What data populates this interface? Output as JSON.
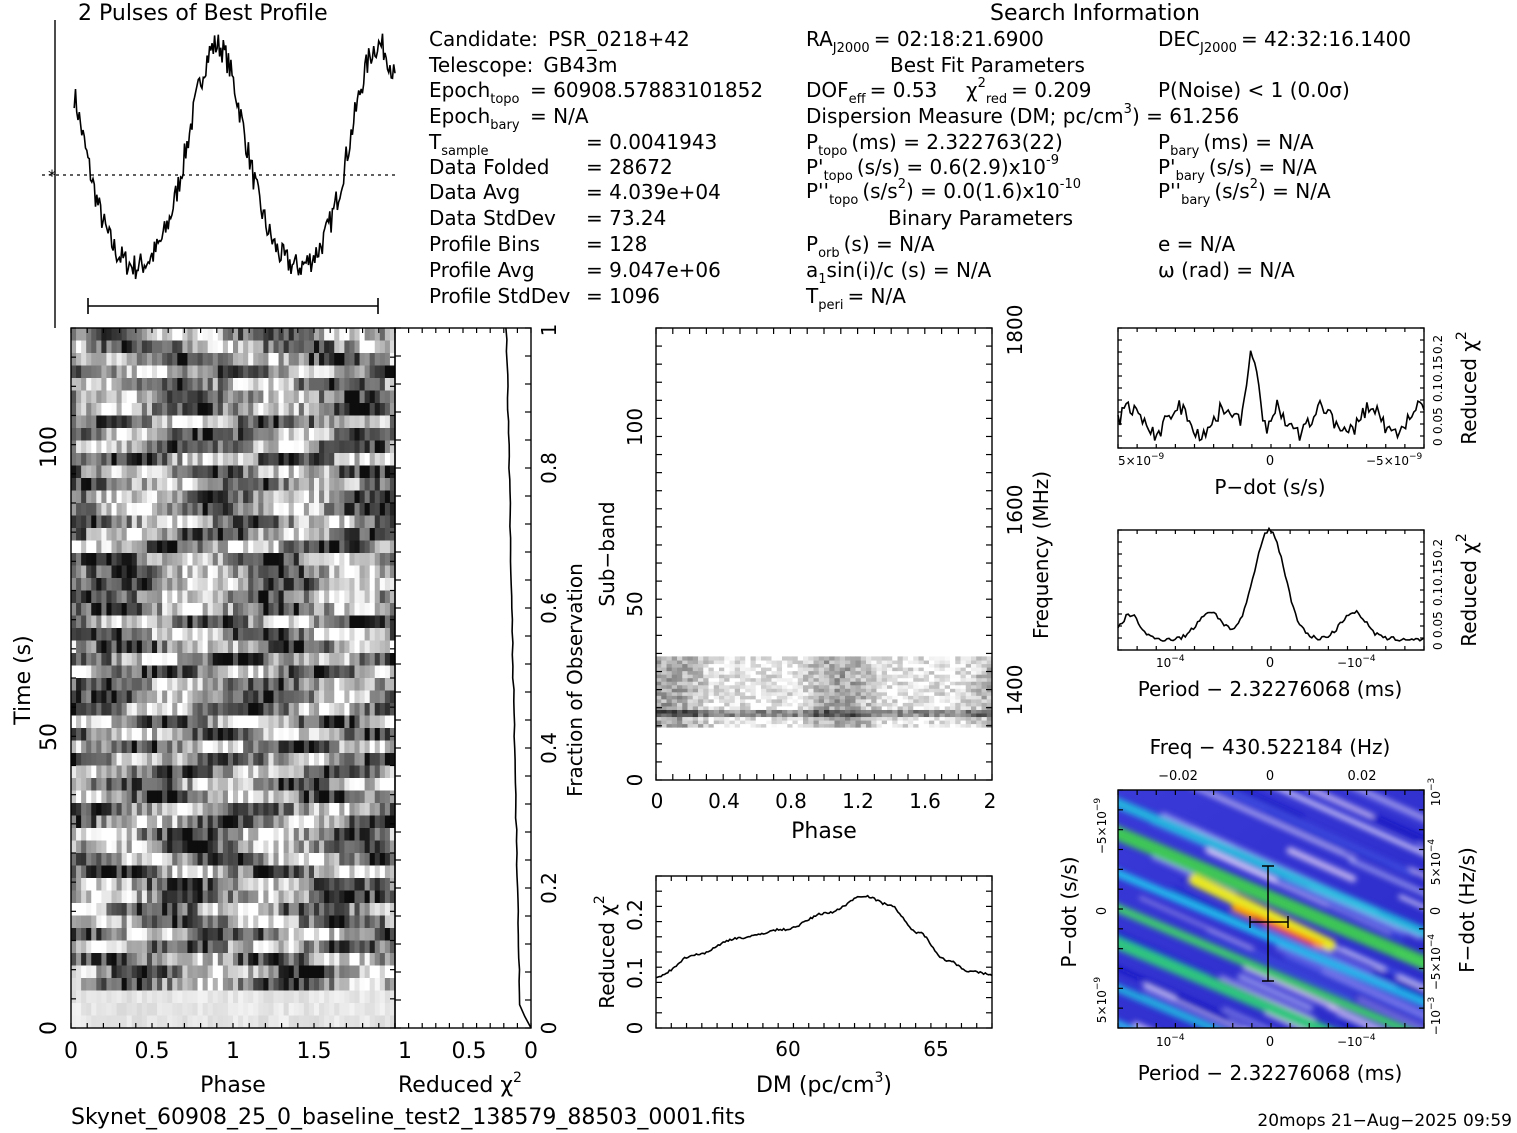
{
  "profile_title": "2 Pulses of Best Profile",
  "search_info_title": "Search Information",
  "info_left": [
    {
      "label": "Candidate:",
      "sub": "",
      "value": "PSR_0218+42"
    },
    {
      "label": "Telescope:",
      "sub": "",
      "value": "GB43m"
    },
    {
      "label": "Epoch",
      "sub": "topo",
      "value": "= 60908.57883101852"
    },
    {
      "label": "Epoch",
      "sub": "bary",
      "value": "= N/A"
    },
    {
      "label": "T",
      "sub": "sample",
      "value": "= 0.0041943"
    },
    {
      "label": "Data Folded",
      "sub": "",
      "value": "= 28672"
    },
    {
      "label": "Data Avg",
      "sub": "",
      "value": "= 4.039e+04"
    },
    {
      "label": "Data StdDev",
      "sub": "",
      "value": "= 73.24"
    },
    {
      "label": "Profile Bins",
      "sub": "",
      "value": "= 128"
    },
    {
      "label": "Profile Avg",
      "sub": "",
      "value": "= 9.047e+06"
    },
    {
      "label": "Profile StdDev",
      "sub": "",
      "value": "= 1096"
    }
  ],
  "ra": {
    "label": "RA",
    "sub": "J2000",
    "value": "= 02:18:21.6900"
  },
  "dec": {
    "label": "DEC",
    "sub": "J2000",
    "value": "= 42:32:16.1400"
  },
  "best_fit_title": "Best Fit Parameters",
  "dof": {
    "label": "DOF",
    "sub": "eff",
    "value": "= 0.53"
  },
  "chi2red": {
    "label": "χ",
    "sup": "2",
    "sub": "red",
    "value": "= 0.209"
  },
  "pnoise": "P(Noise) < 1   (0.0σ)",
  "dm_line": {
    "text": "Dispersion Measure (DM; pc/cm",
    "sup": "3",
    "tail": ") = 61.256"
  },
  "ptopo": {
    "label": "P",
    "sub": "topo",
    "value": "(ms) =  2.322763(22)"
  },
  "pdtopo": {
    "label": "P'",
    "sub": "topo",
    "value": "(s/s) =  0.6(2.9)x10",
    "sup": "-9"
  },
  "pddtopo": {
    "label": "P''",
    "sub": "topo",
    "value": "(s/s",
    "sup1": "2",
    "value2": ") = 0.0(1.6)x10",
    "sup": "-10"
  },
  "pbary": {
    "label": "P",
    "sub": "bary",
    "value": "(ms) = N/A"
  },
  "pdbary": {
    "label": "P'",
    "sub": "bary",
    "value": "(s/s) = N/A"
  },
  "pddbary": {
    "label": "P''",
    "sub": "bary",
    "value": "(s/s",
    "sup1": "2",
    "value2": ") = N/A"
  },
  "binary_title": "Binary Parameters",
  "porb": {
    "label": "P",
    "sub": "orb",
    "value": "(s) = N/A"
  },
  "asini": {
    "label": "a",
    "sub": "1",
    "value": "sin(i)/c (s) = N/A"
  },
  "tperi": {
    "label": "T",
    "sub": "peri",
    "value": "= N/A"
  },
  "ecc": "e = N/A",
  "omega": "ω (rad) = N/A",
  "footer_file": "Skynet_60908_25_0_baseline_test2_138579_88503_0001.fits",
  "footer_stamp": "20mops 21−Aug−2025 09:59",
  "time_phase": {
    "ylabel": "Time (s)",
    "xlabel": "Phase",
    "yticks": [
      "0",
      "50",
      "100"
    ],
    "xticks": [
      "0",
      "0.5",
      "1",
      "1.5"
    ]
  },
  "chi_vs_time": {
    "xlabel": "Reduced χ",
    "xlabel_sup": "2",
    "right_label": "Fraction of Observation",
    "xticks": [
      "1",
      "0.5",
      "0"
    ],
    "right_ticks": [
      "0",
      "0.2",
      "0.4",
      "0.6",
      "0.8",
      "1"
    ]
  },
  "subband_phase": {
    "ylabel": "Sub−band",
    "xlabel": "Phase",
    "right_label": "Frequency (MHz)",
    "yticks": [
      "0",
      "50",
      "100"
    ],
    "xticks": [
      "0",
      "0.4",
      "0.8",
      "1.2",
      "1.6",
      "2"
    ],
    "right_ticks": [
      "1400",
      "1600",
      "1800"
    ]
  },
  "dm_plot": {
    "ylabel": "Reduced χ",
    "ylabel_sup": "2",
    "xlabel": "DM (pc/cm",
    "xlabel_sup": "3",
    "xlabel_tail": ")",
    "yticks": [
      "0",
      "0.1",
      "0.2"
    ],
    "xticks": [
      "60",
      "65"
    ]
  },
  "pdot_plot": {
    "xlabel": "P−dot (s/s)",
    "ylabel": "Reduced χ",
    "ylabel_sup": "2",
    "xticks": [
      {
        "m": "5×10",
        "e": "−9"
      },
      {
        "m": "0",
        "e": ""
      },
      {
        "m": "−5×10",
        "e": "−9"
      }
    ],
    "yticks": [
      "0",
      "0.05",
      "0.1",
      "0.15",
      "0.2"
    ]
  },
  "period_plot": {
    "xlabel": "Period − 2.32276068 (ms)",
    "ylabel": "Reduced χ",
    "ylabel_sup": "2",
    "xticks": [
      {
        "m": "10",
        "e": "−4"
      },
      {
        "m": "0",
        "e": ""
      },
      {
        "m": "−10",
        "e": "−4"
      }
    ],
    "yticks": [
      "0",
      "0.05",
      "0.1",
      "0.15",
      "0.2"
    ]
  },
  "ppdot_plot": {
    "top_label": "Freq − 430.522184 (Hz)",
    "xlabel": "Period − 2.32276068 (ms)",
    "ylabel": "P−dot (s/s)",
    "right_label": "F−dot (Hz/s)",
    "top_ticks": [
      "−0.02",
      "0",
      "0.02"
    ],
    "xticks": [
      {
        "m": "10",
        "e": "−4"
      },
      {
        "m": "0",
        "e": ""
      },
      {
        "m": "−10",
        "e": "−4"
      }
    ],
    "yticks": [
      {
        "m": "−5×10",
        "e": "−9"
      },
      {
        "m": "0",
        "e": ""
      },
      {
        "m": "5×10",
        "e": "−9"
      }
    ],
    "right_ticks": [
      {
        "m": "10",
        "e": "−3"
      },
      {
        "m": "5×10",
        "e": "−4"
      },
      {
        "m": "0",
        "e": ""
      },
      {
        "m": "−5×10",
        "e": "−4"
      },
      {
        "m": "−10",
        "e": "−3"
      }
    ]
  },
  "chart_data": [
    {
      "type": "line",
      "name": "profile",
      "title": "2 Pulses of Best Profile",
      "x_range": [
        0,
        2
      ],
      "peaks_phase": [
        0.9,
        1.9
      ],
      "troughs_phase": [
        0.55,
        1.55
      ]
    },
    {
      "type": "heatmap",
      "name": "time-vs-phase",
      "xlabel": "Phase",
      "ylabel": "Time (s)",
      "xlim": [
        0,
        2
      ],
      "ylim": [
        0,
        120
      ]
    },
    {
      "type": "line",
      "name": "chi-vs-time",
      "xlabel": "Reduced χ2",
      "xlim": [
        1,
        0
      ],
      "ylim": [
        0,
        1
      ]
    },
    {
      "type": "heatmap",
      "name": "subband-vs-phase",
      "xlabel": "Phase",
      "ylabel": "Sub-band",
      "xlim": [
        0,
        2
      ],
      "ylim": [
        0,
        128
      ],
      "filled_subbands": [
        15,
        35
      ],
      "freq_range_mhz": [
        1300,
        1800
      ]
    },
    {
      "type": "line",
      "name": "chi-vs-dm",
      "xlabel": "DM (pc/cm3)",
      "ylabel": "Reduced χ2",
      "xlim": [
        55.7,
        67
      ],
      "ylim": [
        0,
        0.27
      ],
      "x": [
        55.7,
        57,
        58.5,
        60,
        61.5,
        62.7,
        63.5,
        64.5,
        65.5,
        66.3,
        67
      ],
      "y": [
        0.09,
        0.13,
        0.16,
        0.175,
        0.205,
        0.235,
        0.22,
        0.17,
        0.12,
        0.1,
        0.095
      ]
    },
    {
      "type": "line",
      "name": "chi-vs-pdot",
      "xlabel": "P-dot (s/s)",
      "ylabel": "Reduced χ2",
      "ylim": [
        0,
        0.22
      ]
    },
    {
      "type": "line",
      "name": "chi-vs-period",
      "xlabel": "Period − 2.32276068 (ms)",
      "ylabel": "Reduced χ2",
      "ylim": [
        0,
        0.22
      ]
    },
    {
      "type": "heatmap",
      "name": "p-pdot",
      "xlabel": "Period − 2.32276068 (ms)",
      "ylabel": "P-dot (s/s)"
    }
  ]
}
